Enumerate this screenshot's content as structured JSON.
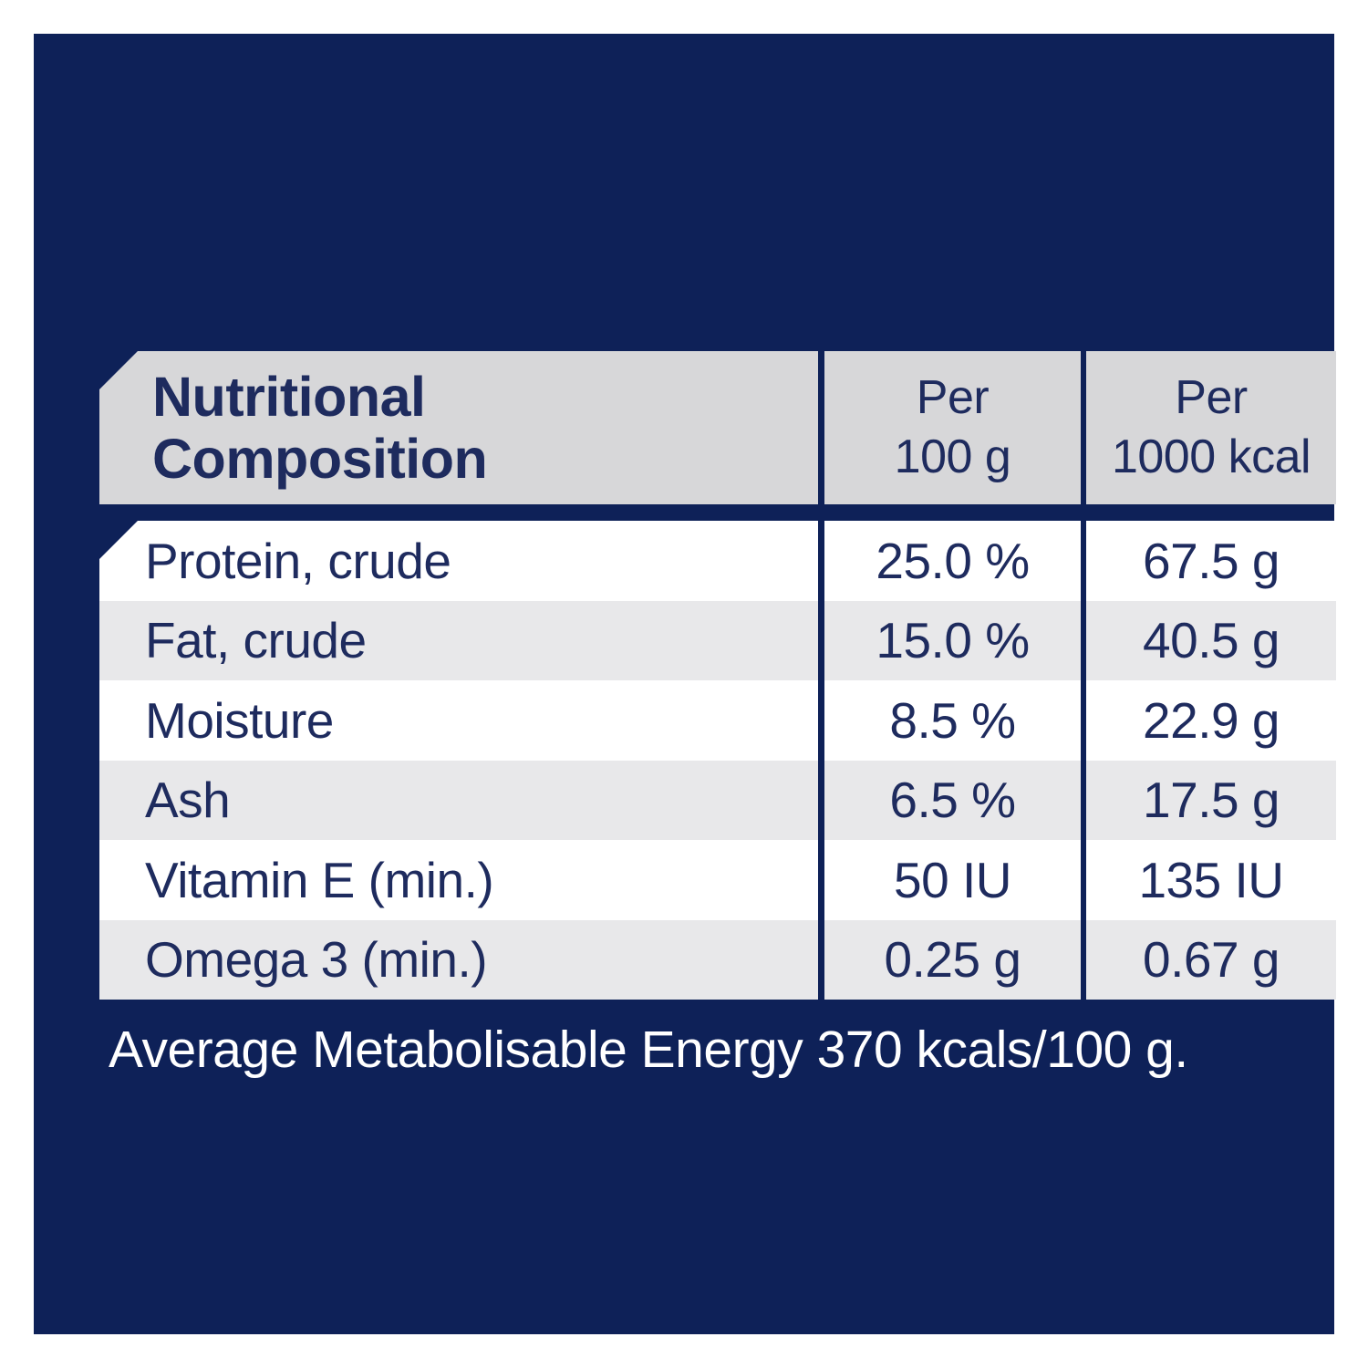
{
  "colors": {
    "panel_navy": "#0E2158",
    "header_gray": "#D7D7D9",
    "row_gray": "#E8E8EA",
    "row_white": "#FFFFFF",
    "text_navy": "#1E2B5E",
    "footer_white": "#FFFFFF"
  },
  "table": {
    "title_line1": "Nutritional",
    "title_line2": "Composition",
    "columns": [
      {
        "line1": "Per",
        "line2": "100 g"
      },
      {
        "line1": "Per",
        "line2": "1000 kcal"
      }
    ],
    "rows": [
      {
        "label": "Protein, crude",
        "per_100g": "25.0 %",
        "per_1000kcal": "67.5 g"
      },
      {
        "label": "Fat, crude",
        "per_100g": "15.0 %",
        "per_1000kcal": "40.5 g"
      },
      {
        "label": "Moisture",
        "per_100g": "8.5 %",
        "per_1000kcal": "22.9 g"
      },
      {
        "label": "Ash",
        "per_100g": "6.5 %",
        "per_1000kcal": "17.5 g"
      },
      {
        "label": "Vitamin E (min.)",
        "per_100g": "50 IU",
        "per_1000kcal": "135 IU"
      },
      {
        "label": "Omega 3 (min.)",
        "per_100g": "0.25 g",
        "per_1000kcal": "0.67 g"
      }
    ]
  },
  "footer": {
    "text": "Average Metabolisable Energy 370 kcals/100 g."
  }
}
